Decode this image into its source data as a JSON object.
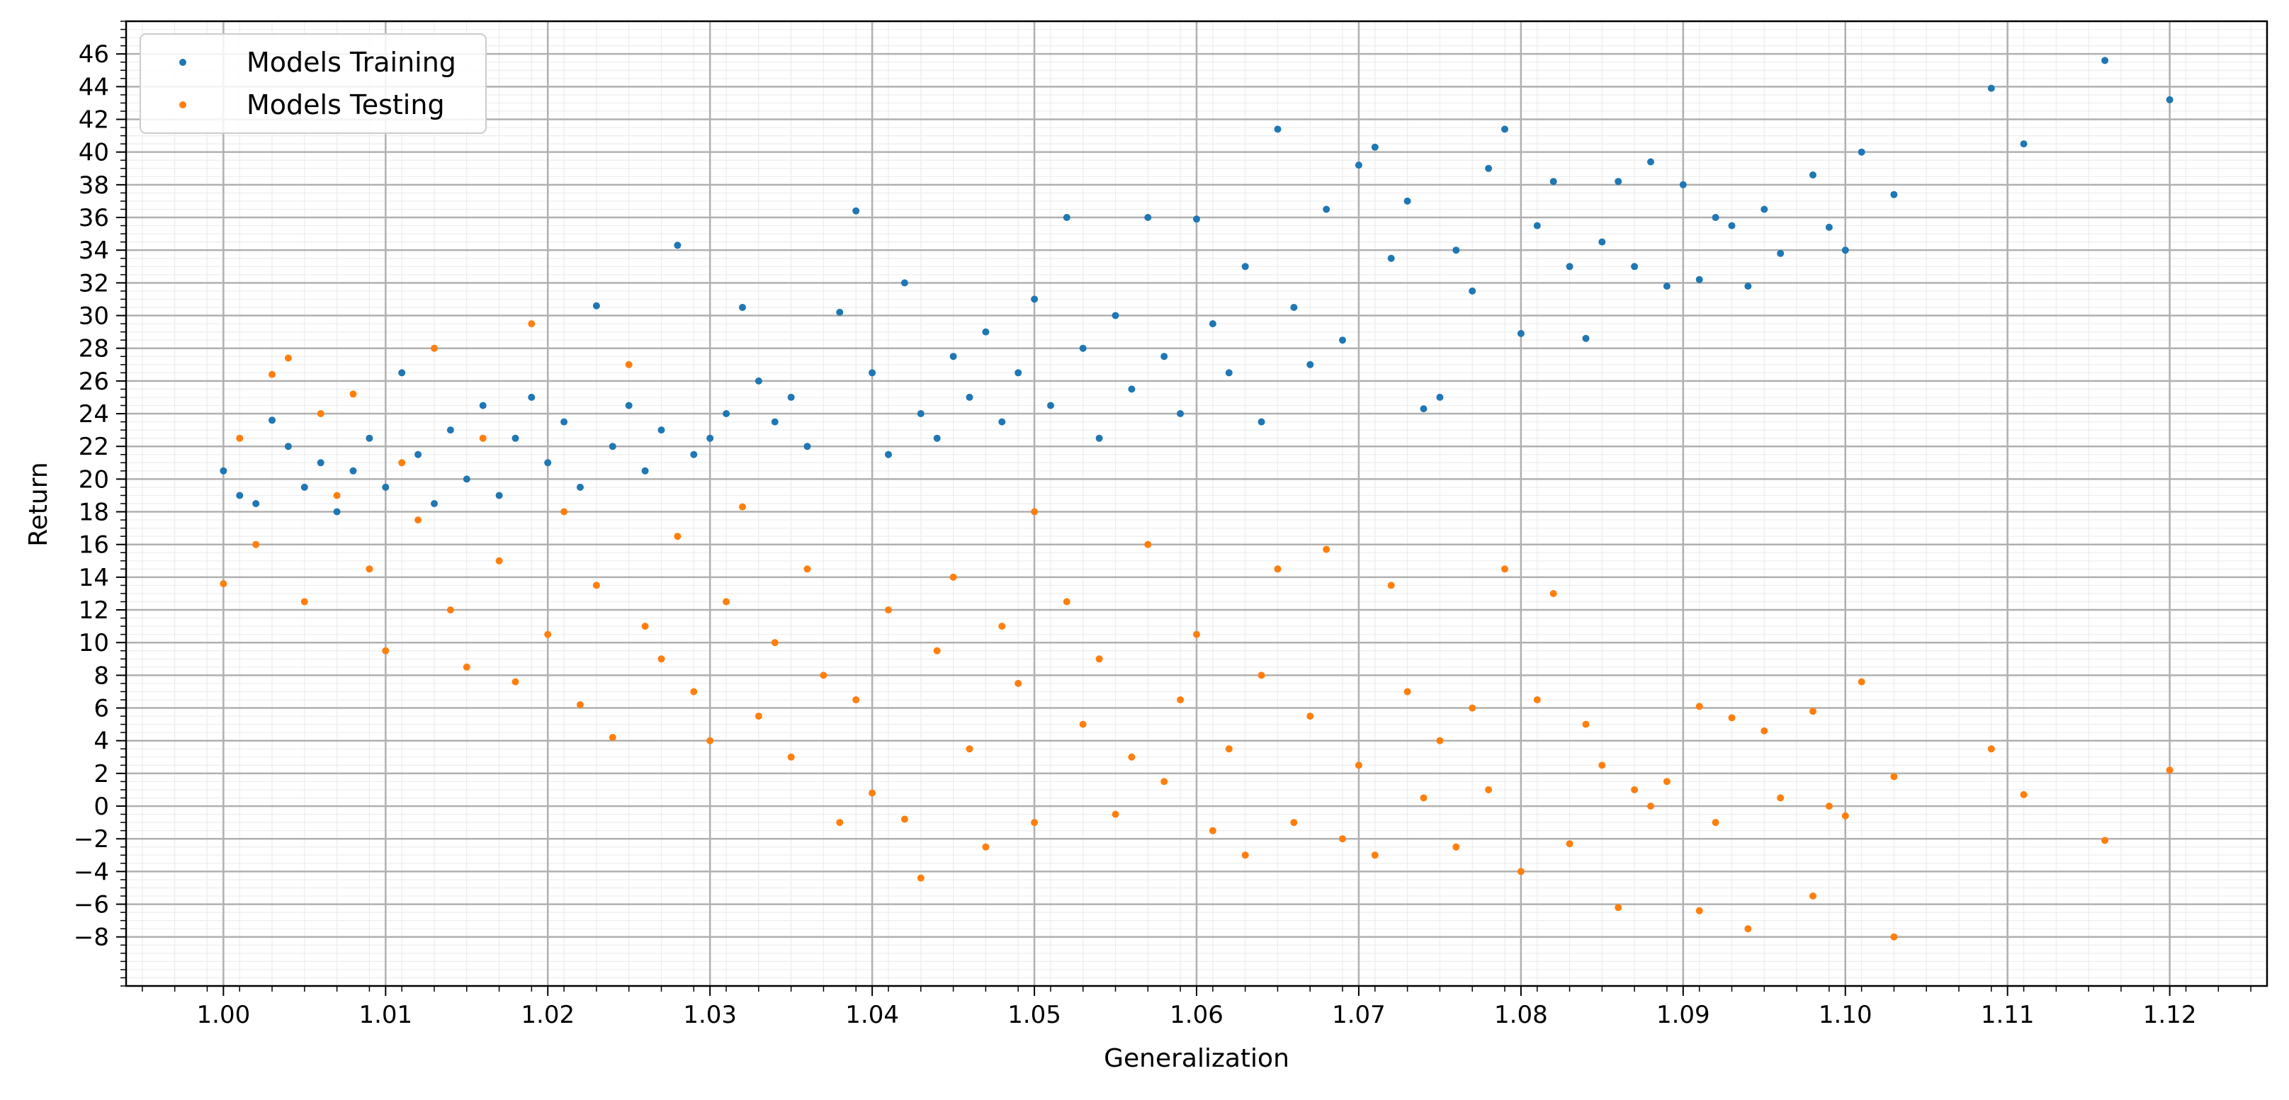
{
  "chart_data": {
    "type": "scatter",
    "title": "",
    "xlabel": "Generalization",
    "ylabel": "Return",
    "xlim": [
      0.994,
      1.126
    ],
    "ylim": [
      -11,
      48
    ],
    "x_ticks": [
      1.0,
      1.01,
      1.02,
      1.03,
      1.04,
      1.05,
      1.06,
      1.07,
      1.08,
      1.09,
      1.1,
      1.11,
      1.12
    ],
    "x_tick_labels": [
      "1.00",
      "1.01",
      "1.02",
      "1.03",
      "1.04",
      "1.05",
      "1.06",
      "1.07",
      "1.08",
      "1.09",
      "1.10",
      "1.11",
      "1.12"
    ],
    "y_ticks": [
      -8,
      -6,
      -4,
      -2,
      0,
      2,
      4,
      6,
      8,
      10,
      12,
      14,
      16,
      18,
      20,
      22,
      24,
      26,
      28,
      30,
      32,
      34,
      36,
      38,
      40,
      42,
      44,
      46
    ],
    "y_tick_labels": [
      "−8",
      "−6",
      "−4",
      "−2",
      "0",
      "2",
      "4",
      "6",
      "8",
      "10",
      "12",
      "14",
      "16",
      "18",
      "20",
      "22",
      "24",
      "26",
      "28",
      "30",
      "32",
      "34",
      "36",
      "38",
      "40",
      "42",
      "44",
      "46"
    ],
    "grid": true,
    "minor_grid": true,
    "legend_position": "top-left",
    "series": [
      {
        "name": "Models Training",
        "color": "#1f77b4",
        "points": [
          [
            1.0,
            20.5
          ],
          [
            1.001,
            19.0
          ],
          [
            1.002,
            18.5
          ],
          [
            1.003,
            23.6
          ],
          [
            1.004,
            22.0
          ],
          [
            1.005,
            19.5
          ],
          [
            1.006,
            21.0
          ],
          [
            1.007,
            18.0
          ],
          [
            1.008,
            20.5
          ],
          [
            1.009,
            22.5
          ],
          [
            1.01,
            19.5
          ],
          [
            1.011,
            26.5
          ],
          [
            1.012,
            21.5
          ],
          [
            1.013,
            18.5
          ],
          [
            1.014,
            23.0
          ],
          [
            1.015,
            20.0
          ],
          [
            1.016,
            24.5
          ],
          [
            1.017,
            19.0
          ],
          [
            1.018,
            22.5
          ],
          [
            1.019,
            25.0
          ],
          [
            1.02,
            21.0
          ],
          [
            1.021,
            23.5
          ],
          [
            1.022,
            19.5
          ],
          [
            1.023,
            30.6
          ],
          [
            1.024,
            22.0
          ],
          [
            1.025,
            24.5
          ],
          [
            1.026,
            20.5
          ],
          [
            1.027,
            23.0
          ],
          [
            1.028,
            34.3
          ],
          [
            1.029,
            21.5
          ],
          [
            1.03,
            22.5
          ],
          [
            1.031,
            24.0
          ],
          [
            1.032,
            30.5
          ],
          [
            1.033,
            26.0
          ],
          [
            1.034,
            23.5
          ],
          [
            1.035,
            25.0
          ],
          [
            1.036,
            22.0
          ],
          [
            1.038,
            30.2
          ],
          [
            1.039,
            36.4
          ],
          [
            1.04,
            26.5
          ],
          [
            1.041,
            21.5
          ],
          [
            1.042,
            32.0
          ],
          [
            1.043,
            24.0
          ],
          [
            1.044,
            22.5
          ],
          [
            1.045,
            27.5
          ],
          [
            1.046,
            25.0
          ],
          [
            1.047,
            29.0
          ],
          [
            1.048,
            23.5
          ],
          [
            1.049,
            26.5
          ],
          [
            1.05,
            31.0
          ],
          [
            1.051,
            24.5
          ],
          [
            1.052,
            36.0
          ],
          [
            1.053,
            28.0
          ],
          [
            1.054,
            22.5
          ],
          [
            1.055,
            30.0
          ],
          [
            1.056,
            25.5
          ],
          [
            1.057,
            36.0
          ],
          [
            1.058,
            27.5
          ],
          [
            1.059,
            24.0
          ],
          [
            1.06,
            35.9
          ],
          [
            1.061,
            29.5
          ],
          [
            1.062,
            26.5
          ],
          [
            1.063,
            33.0
          ],
          [
            1.064,
            23.5
          ],
          [
            1.065,
            41.4
          ],
          [
            1.066,
            30.5
          ],
          [
            1.067,
            27.0
          ],
          [
            1.068,
            36.5
          ],
          [
            1.069,
            28.5
          ],
          [
            1.07,
            39.2
          ],
          [
            1.071,
            40.3
          ],
          [
            1.072,
            33.5
          ],
          [
            1.073,
            37.0
          ],
          [
            1.074,
            24.3
          ],
          [
            1.075,
            25.0
          ],
          [
            1.076,
            34.0
          ],
          [
            1.077,
            31.5
          ],
          [
            1.078,
            39.0
          ],
          [
            1.079,
            41.4
          ],
          [
            1.08,
            28.9
          ],
          [
            1.081,
            35.5
          ],
          [
            1.082,
            38.2
          ],
          [
            1.083,
            33.0
          ],
          [
            1.084,
            28.6
          ],
          [
            1.085,
            34.5
          ],
          [
            1.086,
            38.2
          ],
          [
            1.087,
            33.0
          ],
          [
            1.088,
            39.4
          ],
          [
            1.089,
            31.8
          ],
          [
            1.09,
            38.0
          ],
          [
            1.091,
            32.2
          ],
          [
            1.092,
            36.0
          ],
          [
            1.093,
            35.5
          ],
          [
            1.094,
            31.8
          ],
          [
            1.095,
            36.5
          ],
          [
            1.096,
            33.8
          ],
          [
            1.098,
            38.6
          ],
          [
            1.099,
            35.4
          ],
          [
            1.1,
            34.0
          ],
          [
            1.101,
            40.0
          ],
          [
            1.103,
            37.4
          ],
          [
            1.109,
            43.9
          ],
          [
            1.111,
            40.5
          ],
          [
            1.116,
            45.6
          ],
          [
            1.12,
            43.2
          ]
        ]
      },
      {
        "name": "Models Testing",
        "color": "#ff7f0e",
        "points": [
          [
            1.0,
            13.6
          ],
          [
            1.001,
            22.5
          ],
          [
            1.002,
            16.0
          ],
          [
            1.003,
            26.4
          ],
          [
            1.004,
            27.4
          ],
          [
            1.005,
            12.5
          ],
          [
            1.006,
            24.0
          ],
          [
            1.007,
            19.0
          ],
          [
            1.008,
            25.2
          ],
          [
            1.009,
            14.5
          ],
          [
            1.01,
            9.5
          ],
          [
            1.011,
            21.0
          ],
          [
            1.012,
            17.5
          ],
          [
            1.013,
            28.0
          ],
          [
            1.014,
            12.0
          ],
          [
            1.015,
            8.5
          ],
          [
            1.016,
            22.5
          ],
          [
            1.017,
            15.0
          ],
          [
            1.018,
            7.6
          ],
          [
            1.019,
            29.5
          ],
          [
            1.02,
            10.5
          ],
          [
            1.021,
            18.0
          ],
          [
            1.022,
            6.2
          ],
          [
            1.023,
            13.5
          ],
          [
            1.024,
            4.2
          ],
          [
            1.025,
            27.0
          ],
          [
            1.026,
            11.0
          ],
          [
            1.027,
            9.0
          ],
          [
            1.028,
            16.5
          ],
          [
            1.029,
            7.0
          ],
          [
            1.03,
            4.0
          ],
          [
            1.031,
            12.5
          ],
          [
            1.032,
            18.3
          ],
          [
            1.033,
            5.5
          ],
          [
            1.034,
            10.0
          ],
          [
            1.035,
            3.0
          ],
          [
            1.036,
            14.5
          ],
          [
            1.037,
            8.0
          ],
          [
            1.038,
            -1.0
          ],
          [
            1.039,
            6.5
          ],
          [
            1.04,
            0.8
          ],
          [
            1.041,
            12.0
          ],
          [
            1.042,
            -0.8
          ],
          [
            1.043,
            -4.4
          ],
          [
            1.044,
            9.5
          ],
          [
            1.045,
            14.0
          ],
          [
            1.046,
            3.5
          ],
          [
            1.047,
            -2.5
          ],
          [
            1.048,
            11.0
          ],
          [
            1.049,
            7.5
          ],
          [
            1.05,
            18.0
          ],
          [
            1.05,
            -1.0
          ],
          [
            1.052,
            12.5
          ],
          [
            1.053,
            5.0
          ],
          [
            1.054,
            9.0
          ],
          [
            1.055,
            -0.5
          ],
          [
            1.056,
            3.0
          ],
          [
            1.057,
            16.0
          ],
          [
            1.058,
            1.5
          ],
          [
            1.059,
            6.5
          ],
          [
            1.06,
            10.5
          ],
          [
            1.061,
            -1.5
          ],
          [
            1.062,
            3.5
          ],
          [
            1.063,
            -3.0
          ],
          [
            1.064,
            8.0
          ],
          [
            1.065,
            14.5
          ],
          [
            1.066,
            -1.0
          ],
          [
            1.067,
            5.5
          ],
          [
            1.068,
            15.7
          ],
          [
            1.069,
            -2.0
          ],
          [
            1.07,
            2.5
          ],
          [
            1.071,
            -3.0
          ],
          [
            1.072,
            13.5
          ],
          [
            1.073,
            7.0
          ],
          [
            1.074,
            0.5
          ],
          [
            1.075,
            4.0
          ],
          [
            1.076,
            -2.5
          ],
          [
            1.077,
            6.0
          ],
          [
            1.078,
            1.0
          ],
          [
            1.079,
            14.5
          ],
          [
            1.08,
            -4.0
          ],
          [
            1.081,
            6.5
          ],
          [
            1.082,
            13.0
          ],
          [
            1.083,
            -2.3
          ],
          [
            1.084,
            5.0
          ],
          [
            1.085,
            2.5
          ],
          [
            1.086,
            -6.2
          ],
          [
            1.087,
            1.0
          ],
          [
            1.088,
            0.0
          ],
          [
            1.089,
            1.5
          ],
          [
            1.091,
            6.1
          ],
          [
            1.091,
            -6.4
          ],
          [
            1.092,
            -1.0
          ],
          [
            1.093,
            5.4
          ],
          [
            1.094,
            -7.5
          ],
          [
            1.095,
            4.6
          ],
          [
            1.096,
            0.5
          ],
          [
            1.098,
            5.8
          ],
          [
            1.098,
            -5.5
          ],
          [
            1.099,
            0.0
          ],
          [
            1.1,
            -0.6
          ],
          [
            1.101,
            7.6
          ],
          [
            1.103,
            -8.0
          ],
          [
            1.103,
            1.8
          ],
          [
            1.109,
            3.5
          ],
          [
            1.111,
            0.7
          ],
          [
            1.116,
            -2.1
          ],
          [
            1.12,
            2.2
          ]
        ]
      }
    ]
  }
}
